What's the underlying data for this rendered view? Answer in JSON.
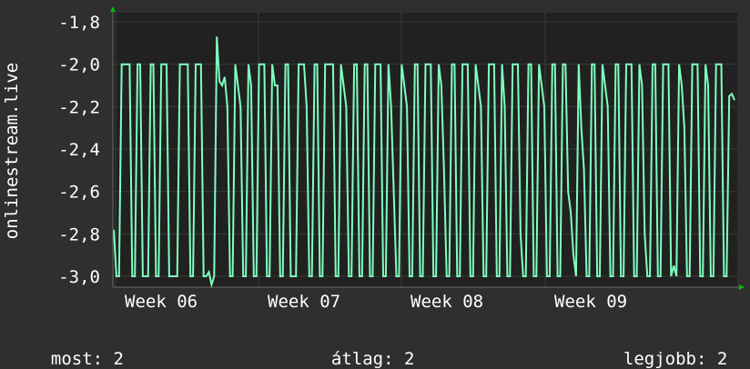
{
  "chart_data": {
    "type": "line",
    "ylabel": "onlinestream.live",
    "ylim": [
      -3.0,
      -1.8
    ],
    "y_ticks": [
      -1.8,
      -2.0,
      -2.2,
      -2.4,
      -2.6,
      -2.8,
      -3.0
    ],
    "y_tick_labels": [
      "-1,8",
      "-2,0",
      "-2,2",
      "-2,4",
      "-2,6",
      "-2,8",
      "-3,0"
    ],
    "x_tick_labels": [
      "Week 06",
      "Week 07",
      "Week 08",
      "Week 09"
    ],
    "grid": true,
    "colors": {
      "background": "#2f2f2f",
      "plot_area": "#212121",
      "grid": "#3a3a3a",
      "series": "#7fffbf",
      "arrow": "#00c000"
    },
    "series": [
      {
        "values": [
          -2.78,
          -3.0,
          -3.0,
          -2.0,
          -2.0,
          -2.0,
          -2.0,
          -3.0,
          -3.0,
          -2.0,
          -2.0,
          -3.0,
          -3.0,
          -3.0,
          -2.0,
          -2.0,
          -3.0,
          -3.0,
          -2.0,
          -2.0,
          -2.0,
          -3.0,
          -3.0,
          -3.0,
          -3.0,
          -2.0,
          -2.0,
          -2.0,
          -2.0,
          -3.0,
          -3.0,
          -2.0,
          -2.0,
          -2.0,
          -3.0,
          -3.0,
          -2.98,
          -3.04,
          -3.0,
          -1.87,
          -2.08,
          -2.1,
          -2.06,
          -2.2,
          -3.0,
          -3.0,
          -2.0,
          -2.1,
          -2.2,
          -3.0,
          -3.0,
          -2.0,
          -2.1,
          -3.0,
          -3.0,
          -2.0,
          -2.0,
          -2.0,
          -3.0,
          -3.0,
          -2.0,
          -2.1,
          -2.1,
          -3.0,
          -3.0,
          -2.0,
          -2.0,
          -3.0,
          -3.0,
          -3.0,
          -2.0,
          -2.0,
          -2.0,
          -2.2,
          -3.0,
          -3.0,
          -2.0,
          -2.0,
          -3.0,
          -3.0,
          -2.0,
          -2.0,
          -2.0,
          -2.0,
          -3.0,
          -3.0,
          -2.0,
          -2.1,
          -2.2,
          -3.0,
          -3.0,
          -2.0,
          -2.0,
          -3.0,
          -3.0,
          -2.0,
          -2.0,
          -3.0,
          -3.0,
          -2.0,
          -2.0,
          -2.0,
          -3.0,
          -3.0,
          -2.0,
          -2.2,
          -2.6,
          -3.0,
          -3.0,
          -2.0,
          -2.1,
          -2.2,
          -3.0,
          -3.0,
          -2.0,
          -2.0,
          -3.0,
          -3.0,
          -2.0,
          -2.0,
          -2.0,
          -3.0,
          -3.0,
          -2.0,
          -2.1,
          -2.5,
          -3.0,
          -3.0,
          -2.0,
          -2.0,
          -3.0,
          -3.0,
          -2.0,
          -2.0,
          -2.0,
          -3.0,
          -3.0,
          -2.0,
          -2.1,
          -2.2,
          -3.0,
          -3.0,
          -2.0,
          -2.0,
          -2.0,
          -3.0,
          -3.0,
          -2.0,
          -2.2,
          -3.0,
          -3.0,
          -2.0,
          -2.0,
          -2.0,
          -2.8,
          -3.0,
          -3.0,
          -2.0,
          -2.0,
          -3.0,
          -3.0,
          -2.0,
          -2.1,
          -2.2,
          -3.0,
          -3.0,
          -2.0,
          -2.0,
          -3.0,
          -3.0,
          -2.0,
          -2.0,
          -2.6,
          -2.7,
          -2.9,
          -3.0,
          -2.0,
          -2.3,
          -2.5,
          -3.0,
          -3.0,
          -2.0,
          -2.0,
          -3.0,
          -3.0,
          -2.0,
          -2.1,
          -2.2,
          -3.0,
          -3.0,
          -2.0,
          -2.0,
          -3.0,
          -3.0,
          -2.0,
          -2.0,
          -2.0,
          -3.0,
          -3.0,
          -2.0,
          -2.1,
          -2.8,
          -3.0,
          -3.0,
          -2.0,
          -2.0,
          -3.0,
          -3.0,
          -2.0,
          -2.0,
          -2.0,
          -3.0,
          -2.95,
          -3.0,
          -2.0,
          -2.1,
          -2.3,
          -3.0,
          -3.0,
          -2.0,
          -2.0,
          -2.0,
          -3.0,
          -3.0,
          -2.0,
          -2.1,
          -3.0,
          -3.0,
          -2.0,
          -2.0,
          -2.0,
          -3.0,
          -3.0,
          -2.15,
          -2.14,
          -2.17
        ]
      }
    ],
    "stats": [
      {
        "label": "most:",
        "value": "2"
      },
      {
        "label": "átlag:",
        "value": "2"
      },
      {
        "label": "legjobb:",
        "value": "2"
      }
    ]
  }
}
